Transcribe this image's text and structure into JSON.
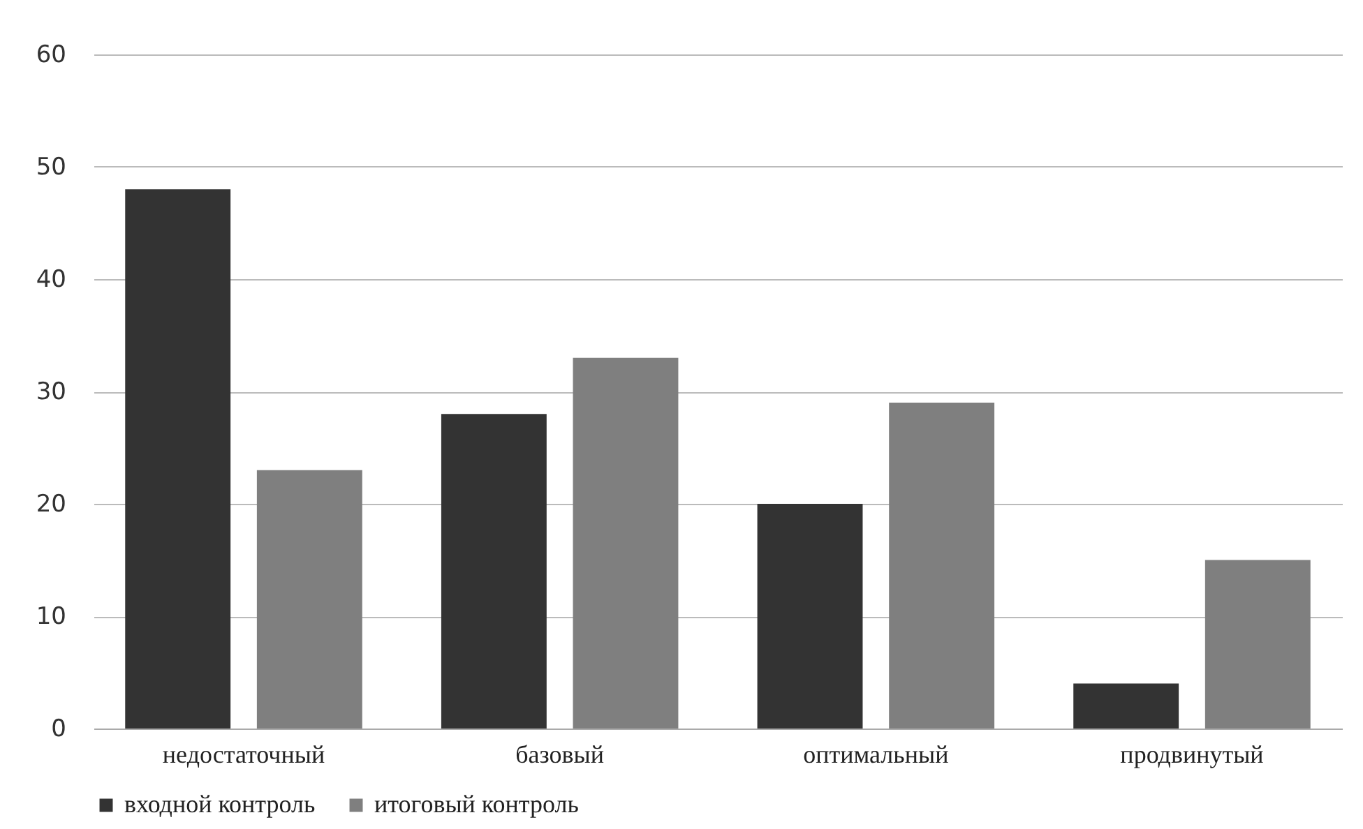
{
  "chart_data": {
    "type": "bar",
    "categories": [
      "недостаточный",
      "базовый",
      "оптимальный",
      "продвинутый"
    ],
    "series": [
      {
        "name": "входной контроль",
        "color": "#333333",
        "values": [
          48,
          28,
          20,
          4
        ]
      },
      {
        "name": "итоговый контроль",
        "color": "#7f7f7f",
        "values": [
          23,
          33,
          29,
          15
        ]
      }
    ],
    "ylim": [
      0,
      60
    ],
    "yticks": [
      0,
      10,
      20,
      30,
      40,
      50,
      60
    ],
    "grid": "y",
    "legend": "bottom"
  }
}
